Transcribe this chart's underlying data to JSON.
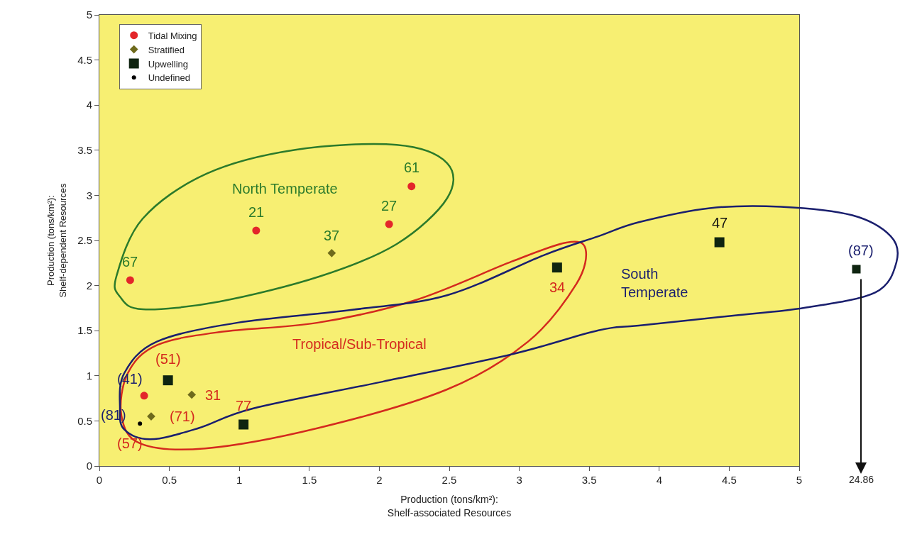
{
  "chart_data": {
    "type": "scatter",
    "xlabel": "Production (tons/km²):\nShelf-associated Resources",
    "ylabel": "Production (tons/km²):\nShelf-dependent Resources",
    "xlim": [
      0,
      5
    ],
    "xticks": [
      0,
      0.5,
      1,
      1.5,
      2,
      2.5,
      3,
      3.5,
      4,
      4.5,
      5
    ],
    "ylim": [
      0,
      5
    ],
    "yticks": [
      0,
      0.5,
      1,
      1.5,
      2,
      2.5,
      3,
      3.5,
      4,
      4.5,
      5
    ],
    "grid": false,
    "legend": "top left",
    "series": [
      {
        "name": "Tidal Mixing",
        "color": "#e3262a",
        "marker": "circle",
        "x": [
          0.22,
          1.12,
          2.07,
          2.23,
          0.32
        ],
        "values": [
          2.06,
          2.61,
          2.68,
          3.1,
          0.78
        ]
      },
      {
        "name": "Stratified",
        "color": "#6e6a1c",
        "marker": "diamond",
        "x": [
          1.66,
          0.66,
          0.37
        ],
        "values": [
          2.36,
          0.79,
          0.55
        ]
      },
      {
        "name": "Upwelling",
        "color": "#0f2410",
        "marker": "square",
        "x": [
          0.49,
          1.03,
          3.27,
          4.43
        ],
        "values": [
          0.95,
          0.46,
          2.2,
          2.48
        ]
      },
      {
        "name": "Undefined",
        "color": "#000000",
        "marker": "circle",
        "x": [
          0.29
        ],
        "values": [
          0.47
        ]
      }
    ],
    "annotations": [
      "North Temperate",
      "Tropical/Sub-Tropical",
      "South\nTemperate",
      "(87)",
      "24.86",
      {
        "text": "67",
        "x": 0.22,
        "y": 2.06
      },
      {
        "text": "21",
        "x": 1.12,
        "y": 2.61
      },
      {
        "text": "27",
        "x": 2.07,
        "y": 2.68
      },
      {
        "text": "61",
        "x": 2.23,
        "y": 3.1
      },
      {
        "text": "37",
        "x": 1.66,
        "y": 2.36
      },
      {
        "text": "34",
        "x": 3.27,
        "y": 2.2
      },
      {
        "text": "47",
        "x": 4.43,
        "y": 2.48
      },
      {
        "text": "31",
        "x": 0.66,
        "y": 0.79
      },
      {
        "text": "(71)",
        "x": 0.37,
        "y": 0.55
      },
      {
        "text": "77",
        "x": 1.03,
        "y": 0.46
      },
      {
        "text": "(51)",
        "x": 0.49,
        "y": 0.95
      },
      {
        "text": "(41)",
        "x": 0.32,
        "y": 0.78
      },
      {
        "text": "(81)",
        "x": 0.29,
        "y": 0.47
      },
      {
        "text": "(57)",
        "x": 0.29,
        "y": 0.47
      }
    ]
  }
}
